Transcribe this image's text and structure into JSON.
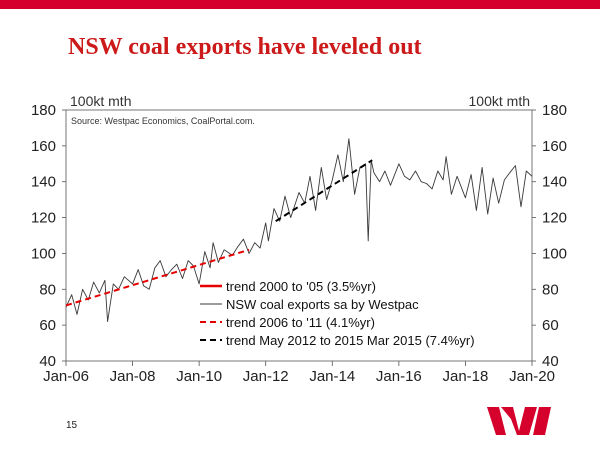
{
  "colors": {
    "brand_red": "#d5002b",
    "title_red": "#cc1a1a",
    "axis": "#555555",
    "series_actual": "#3a3a3a",
    "trend_red": "#e60000",
    "trend_black": "#000000"
  },
  "slide": {
    "title": "NSW coal exports have leveled out",
    "page_number": "15",
    "logo_icon": "westpac-w-logo-icon"
  },
  "chart_data": {
    "type": "line",
    "left_unit_label": "100kt mth",
    "right_unit_label": "100kt mth",
    "source_note": "Source: Westpac Economics, CoalPortal.com.",
    "ylim": [
      40,
      180
    ],
    "yticks": [
      "40",
      "60",
      "80",
      "100",
      "120",
      "140",
      "160",
      "180"
    ],
    "xlim": [
      2006.0,
      2020.0
    ],
    "xticks": [
      {
        "label": "Jan-06",
        "x": 2006.0
      },
      {
        "label": "Jan-08",
        "x": 2008.0
      },
      {
        "label": "Jan-10",
        "x": 2010.0
      },
      {
        "label": "Jan-12",
        "x": 2012.0
      },
      {
        "label": "Jan-14",
        "x": 2014.0
      },
      {
        "label": "Jan-16",
        "x": 2016.0
      },
      {
        "label": "Jan-18",
        "x": 2018.0
      },
      {
        "label": "Jan-20",
        "x": 2020.0
      }
    ],
    "series": [
      {
        "name": "NSW coal exports sa by Westpac",
        "style": "solid-thin",
        "color": "#3a3a3a",
        "x": [
          2006.0,
          2006.17,
          2006.33,
          2006.5,
          2006.67,
          2006.83,
          2007.0,
          2007.17,
          2007.25,
          2007.42,
          2007.58,
          2007.75,
          2008.0,
          2008.17,
          2008.33,
          2008.5,
          2008.67,
          2008.83,
          2009.0,
          2009.17,
          2009.33,
          2009.5,
          2009.67,
          2009.83,
          2010.0,
          2010.17,
          2010.33,
          2010.42,
          2010.58,
          2010.75,
          2011.0,
          2011.17,
          2011.33,
          2011.5,
          2011.67,
          2011.83,
          2012.0,
          2012.08,
          2012.25,
          2012.42,
          2012.58,
          2012.75,
          2013.0,
          2013.17,
          2013.33,
          2013.5,
          2013.67,
          2013.83,
          2014.0,
          2014.17,
          2014.33,
          2014.5,
          2014.67,
          2014.83,
          2015.0,
          2015.08,
          2015.17,
          2015.25,
          2015.42,
          2015.58,
          2015.75,
          2016.0,
          2016.17,
          2016.33,
          2016.5,
          2016.67,
          2016.83,
          2017.0,
          2017.17,
          2017.33,
          2017.42,
          2017.58,
          2017.75,
          2018.0,
          2018.17,
          2018.33,
          2018.5,
          2018.67,
          2018.83,
          2019.0,
          2019.17,
          2019.33,
          2019.5,
          2019.67,
          2019.83,
          2020.0
        ],
        "values": [
          70,
          77,
          66,
          80,
          74,
          84,
          78,
          85,
          62,
          83,
          80,
          87,
          83,
          91,
          82,
          80,
          92,
          96,
          87,
          91,
          94,
          86,
          96,
          93,
          83,
          101,
          92,
          106,
          95,
          102,
          99,
          104,
          108,
          100,
          106,
          103,
          117,
          107,
          125,
          118,
          132,
          120,
          134,
          128,
          143,
          124,
          148,
          130,
          141,
          155,
          140,
          164,
          133,
          148,
          150,
          107,
          152,
          145,
          140,
          146,
          138,
          150,
          143,
          141,
          146,
          140,
          139,
          136,
          146,
          141,
          154,
          133,
          143,
          131,
          144,
          124,
          148,
          122,
          142,
          128,
          141,
          145,
          149,
          126,
          146,
          143
        ]
      },
      {
        "name": "trend 2000 to '05 (3.5%yr)",
        "style": "solid-thick",
        "color": "#e60000",
        "x": [],
        "values": []
      },
      {
        "name": "trend 2006 to '11 (4.1%yr)",
        "style": "dashed",
        "color": "#e60000",
        "x": [
          2006.0,
          2011.5
        ],
        "values": [
          71,
          102
        ]
      },
      {
        "name": "trend May 2012 to 2015 Mar 2015 (7.4%yr)",
        "style": "dashed",
        "color": "#000000",
        "x": [
          2012.3,
          2015.2
        ],
        "values": [
          118,
          152
        ]
      }
    ],
    "legend": {
      "placement": "bottom-center-inside",
      "entries": [
        {
          "label": "trend 2000 to '05 (3.5%yr)",
          "style": "solid-thick",
          "color": "#e60000"
        },
        {
          "label": "NSW coal exports sa by Westpac",
          "style": "solid-thin",
          "color": "#3a3a3a"
        },
        {
          "label": "trend 2006 to '11 (4.1%yr)",
          "style": "dashed",
          "color": "#e60000"
        },
        {
          "label": "trend May 2012 to 2015 Mar 2015 (7.4%yr)",
          "style": "dashed",
          "color": "#000000"
        }
      ]
    }
  }
}
